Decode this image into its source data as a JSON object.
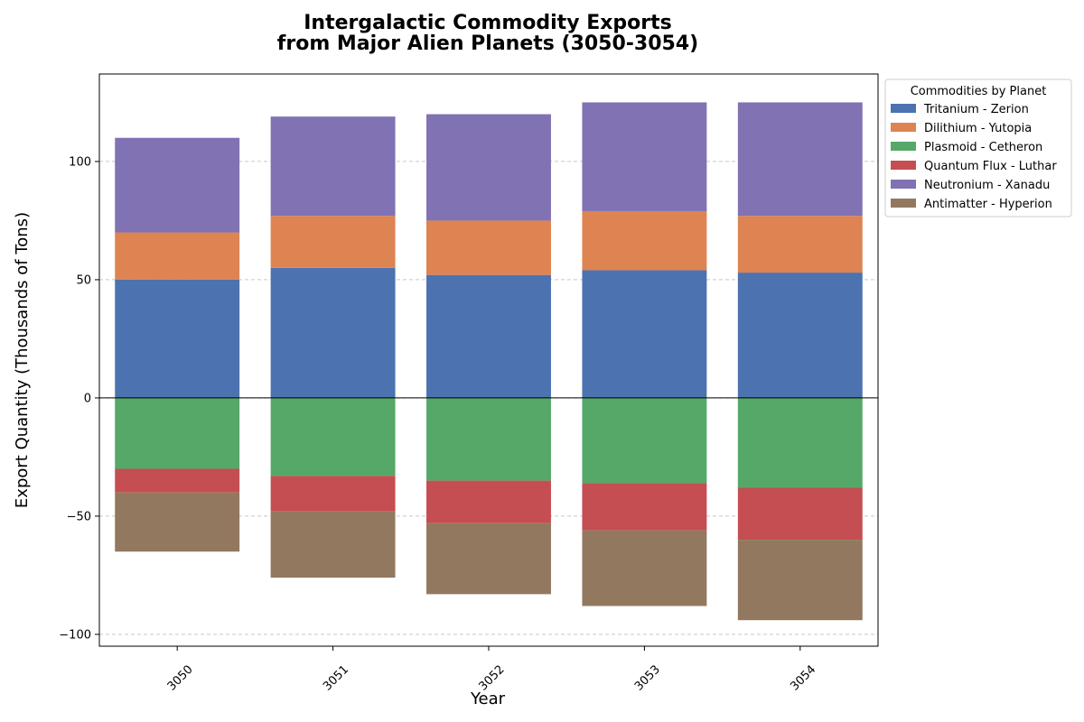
{
  "chart_data": {
    "type": "bar",
    "stacked": "diverging",
    "title_lines": [
      "Intergalactic Commodity Exports",
      "from Major Alien Planets (3050-3054)"
    ],
    "xlabel": "Year",
    "ylabel": "Export Quantity (Thousands of Tons)",
    "categories": [
      "3050",
      "3051",
      "3052",
      "3053",
      "3054"
    ],
    "ylim": [
      -105,
      137
    ],
    "yticks": [
      -100,
      -50,
      0,
      50,
      100
    ],
    "ytick_labels": [
      "−100",
      "−50",
      "0",
      "50",
      "100"
    ],
    "grid": "y-dashed",
    "legend": {
      "title": "Commodities by Planet",
      "placement": "outside-top-right"
    },
    "series": [
      {
        "name": "Tritanium - Zerion",
        "color": "#4c72b0",
        "values": [
          50,
          55,
          52,
          54,
          53
        ]
      },
      {
        "name": "Dilithium - Yutopia",
        "color": "#dd8452",
        "values": [
          20,
          22,
          23,
          25,
          24
        ]
      },
      {
        "name": "Plasmoid - Cetheron",
        "color": "#55a868",
        "values": [
          -30,
          -33,
          -35,
          -36,
          -38
        ]
      },
      {
        "name": "Quantum Flux - Luthar",
        "color": "#c44e52",
        "values": [
          -10,
          -15,
          -18,
          -20,
          -22
        ]
      },
      {
        "name": "Neutronium - Xanadu",
        "color": "#8172b3",
        "values": [
          40,
          42,
          45,
          46,
          48
        ]
      },
      {
        "name": "Antimatter - Hyperion",
        "color": "#937860",
        "values": [
          -25,
          -28,
          -30,
          -32,
          -34
        ]
      }
    ]
  }
}
